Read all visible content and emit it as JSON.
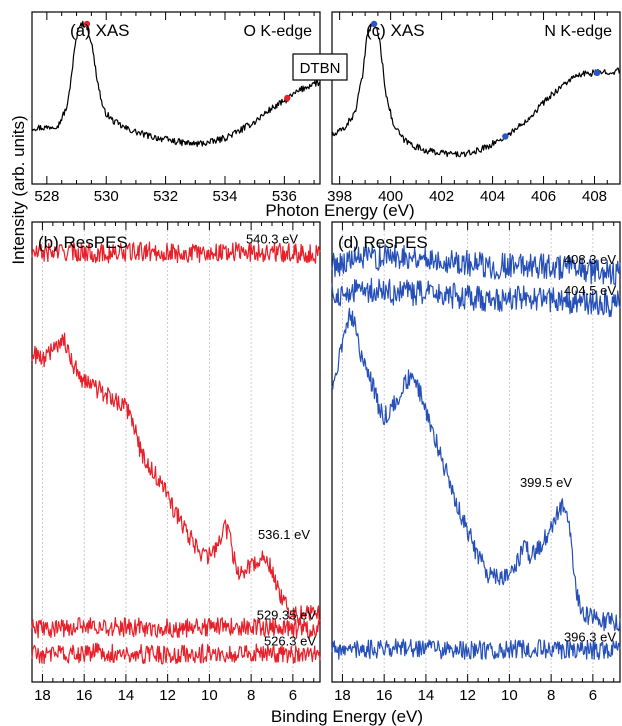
{
  "figure": {
    "y_axis_label": "Intensity (arb. units)",
    "top_x_axis_label": "Photon Energy (eV)",
    "bottom_x_axis_label": "Binding Energy (eV)",
    "sample_label": "DTBN"
  },
  "chart_data": [
    {
      "type": "line",
      "panel_label": "(a) XAS",
      "edge_label": "O K-edge",
      "xlim": [
        527.5,
        537.2
      ],
      "x_ticks": [
        528,
        530,
        532,
        534,
        536
      ],
      "line_color": "#000000",
      "marker_color": "#e8202a",
      "series": [
        {
          "x": [
            527.6,
            528.0,
            528.4,
            528.7,
            528.95,
            529.1,
            529.25,
            529.35,
            529.5,
            529.7,
            529.9,
            530.2,
            530.6,
            531.0,
            531.5,
            532.0,
            532.5,
            533.0,
            533.5,
            534.0,
            534.5,
            535.0,
            535.5,
            536.0,
            536.5,
            537.0
          ],
          "y": [
            0.3,
            0.3,
            0.32,
            0.45,
            0.85,
            1.0,
            1.0,
            0.98,
            0.88,
            0.62,
            0.42,
            0.35,
            0.3,
            0.27,
            0.24,
            0.22,
            0.2,
            0.19,
            0.2,
            0.23,
            0.28,
            0.34,
            0.42,
            0.48,
            0.55,
            0.6
          ]
        }
      ],
      "markers": [
        {
          "x": 529.35,
          "y": 1.0
        },
        {
          "x": 536.1,
          "y": 0.5
        }
      ]
    },
    {
      "type": "line",
      "panel_label": "(c) XAS",
      "edge_label": "N K-edge",
      "xlim": [
        397.7,
        409.0
      ],
      "x_ticks": [
        398,
        400,
        402,
        404,
        406,
        408
      ],
      "line_color": "#000000",
      "marker_color": "#2a55c8",
      "series": [
        {
          "x": [
            397.8,
            398.2,
            398.6,
            398.9,
            399.1,
            399.3,
            399.45,
            399.6,
            399.8,
            400.1,
            400.5,
            401.0,
            401.5,
            402.0,
            402.5,
            403.0,
            403.5,
            404.0,
            404.5,
            405.0,
            405.5,
            406.0,
            406.5,
            407.0,
            407.5,
            408.0,
            408.5,
            408.9
          ],
          "y": [
            0.25,
            0.3,
            0.4,
            0.65,
            0.95,
            1.0,
            0.98,
            0.85,
            0.55,
            0.32,
            0.22,
            0.17,
            0.14,
            0.13,
            0.12,
            0.12,
            0.15,
            0.19,
            0.24,
            0.3,
            0.38,
            0.47,
            0.55,
            0.62,
            0.66,
            0.67,
            0.68,
            0.68
          ]
        }
      ],
      "markers": [
        {
          "x": 399.35,
          "y": 1.0
        },
        {
          "x": 404.5,
          "y": 0.24
        },
        {
          "x": 408.1,
          "y": 0.67
        }
      ]
    },
    {
      "type": "line",
      "panel_label": "(b) ResPES",
      "xlim": [
        18.5,
        4.7
      ],
      "x_ticks": [
        18,
        16,
        14,
        12,
        10,
        8,
        6
      ],
      "grid": true,
      "line_color": "#e8202a",
      "series": [
        {
          "name": "540.3 eV",
          "x": [
            18.5,
            17,
            15,
            13,
            11,
            9,
            7,
            5,
            4.7
          ],
          "y": [
            0.955,
            0.96,
            0.955,
            0.96,
            0.955,
            0.96,
            0.958,
            0.955,
            0.955
          ]
        },
        {
          "name": "536.1 eV",
          "x": [
            18.5,
            18,
            17.5,
            17,
            16.5,
            16,
            15.5,
            15,
            14.5,
            14,
            13.5,
            13.3,
            13,
            12.5,
            12,
            11.5,
            11,
            10.5,
            10,
            9.6,
            9.3,
            9.0,
            8.8,
            8.5,
            8.2,
            7.8,
            7.4,
            7.0,
            6.7,
            6.4,
            6.0,
            5.5,
            5.0,
            4.7
          ],
          "y": [
            0.73,
            0.71,
            0.74,
            0.76,
            0.7,
            0.66,
            0.65,
            0.63,
            0.62,
            0.6,
            0.55,
            0.5,
            0.47,
            0.44,
            0.4,
            0.35,
            0.31,
            0.27,
            0.26,
            0.29,
            0.33,
            0.3,
            0.25,
            0.22,
            0.23,
            0.25,
            0.26,
            0.23,
            0.19,
            0.15,
            0.13,
            0.13,
            0.13,
            0.13
          ]
        },
        {
          "name": "529.35 eV",
          "x": [
            18.5,
            15,
            12,
            9,
            6,
            4.7
          ],
          "y": [
            0.095,
            0.1,
            0.095,
            0.1,
            0.095,
            0.095
          ]
        },
        {
          "name": "526.3 eV",
          "x": [
            18.5,
            15,
            12,
            9,
            6,
            4.7
          ],
          "y": [
            0.035,
            0.04,
            0.035,
            0.04,
            0.035,
            0.035
          ]
        }
      ]
    },
    {
      "type": "line",
      "panel_label": "(d) ResPES",
      "xlim": [
        18.5,
        4.7
      ],
      "x_ticks": [
        18,
        16,
        14,
        12,
        10,
        8,
        6
      ],
      "grid": true,
      "line_color": "#2650b8",
      "series": [
        {
          "name": "408.3 eV",
          "x": [
            18.5,
            17,
            15,
            13,
            11,
            9,
            7,
            5,
            4.7
          ],
          "y": [
            0.93,
            0.945,
            0.95,
            0.94,
            0.925,
            0.93,
            0.92,
            0.91,
            0.91
          ]
        },
        {
          "name": "404.5 eV",
          "x": [
            18.5,
            17,
            15,
            13,
            11,
            9,
            7,
            5,
            4.7
          ],
          "y": [
            0.86,
            0.87,
            0.865,
            0.86,
            0.85,
            0.855,
            0.845,
            0.84,
            0.84
          ]
        },
        {
          "name": "399.5 eV",
          "x": [
            18.5,
            18.2,
            17.9,
            17.6,
            17.3,
            17.0,
            16.6,
            16.3,
            16.0,
            15.6,
            15.2,
            14.8,
            14.4,
            14.0,
            13.5,
            13.0,
            12.5,
            12.0,
            11.5,
            11.0,
            10.5,
            10.0,
            9.6,
            9.3,
            9.0,
            8.6,
            8.2,
            7.8,
            7.5,
            7.2,
            7.0,
            6.8,
            6.5,
            6.0,
            5.5,
            5.0,
            4.7
          ],
          "y": [
            0.65,
            0.7,
            0.78,
            0.82,
            0.77,
            0.7,
            0.66,
            0.61,
            0.58,
            0.6,
            0.64,
            0.67,
            0.65,
            0.6,
            0.52,
            0.45,
            0.38,
            0.32,
            0.26,
            0.22,
            0.21,
            0.22,
            0.25,
            0.29,
            0.26,
            0.28,
            0.31,
            0.35,
            0.38,
            0.35,
            0.27,
            0.18,
            0.13,
            0.12,
            0.11,
            0.11,
            0.11
          ]
        },
        {
          "name": "396.3 eV",
          "x": [
            18.5,
            15,
            12,
            9,
            6,
            4.7
          ],
          "y": [
            0.045,
            0.05,
            0.045,
            0.05,
            0.045,
            0.045
          ]
        }
      ]
    }
  ]
}
